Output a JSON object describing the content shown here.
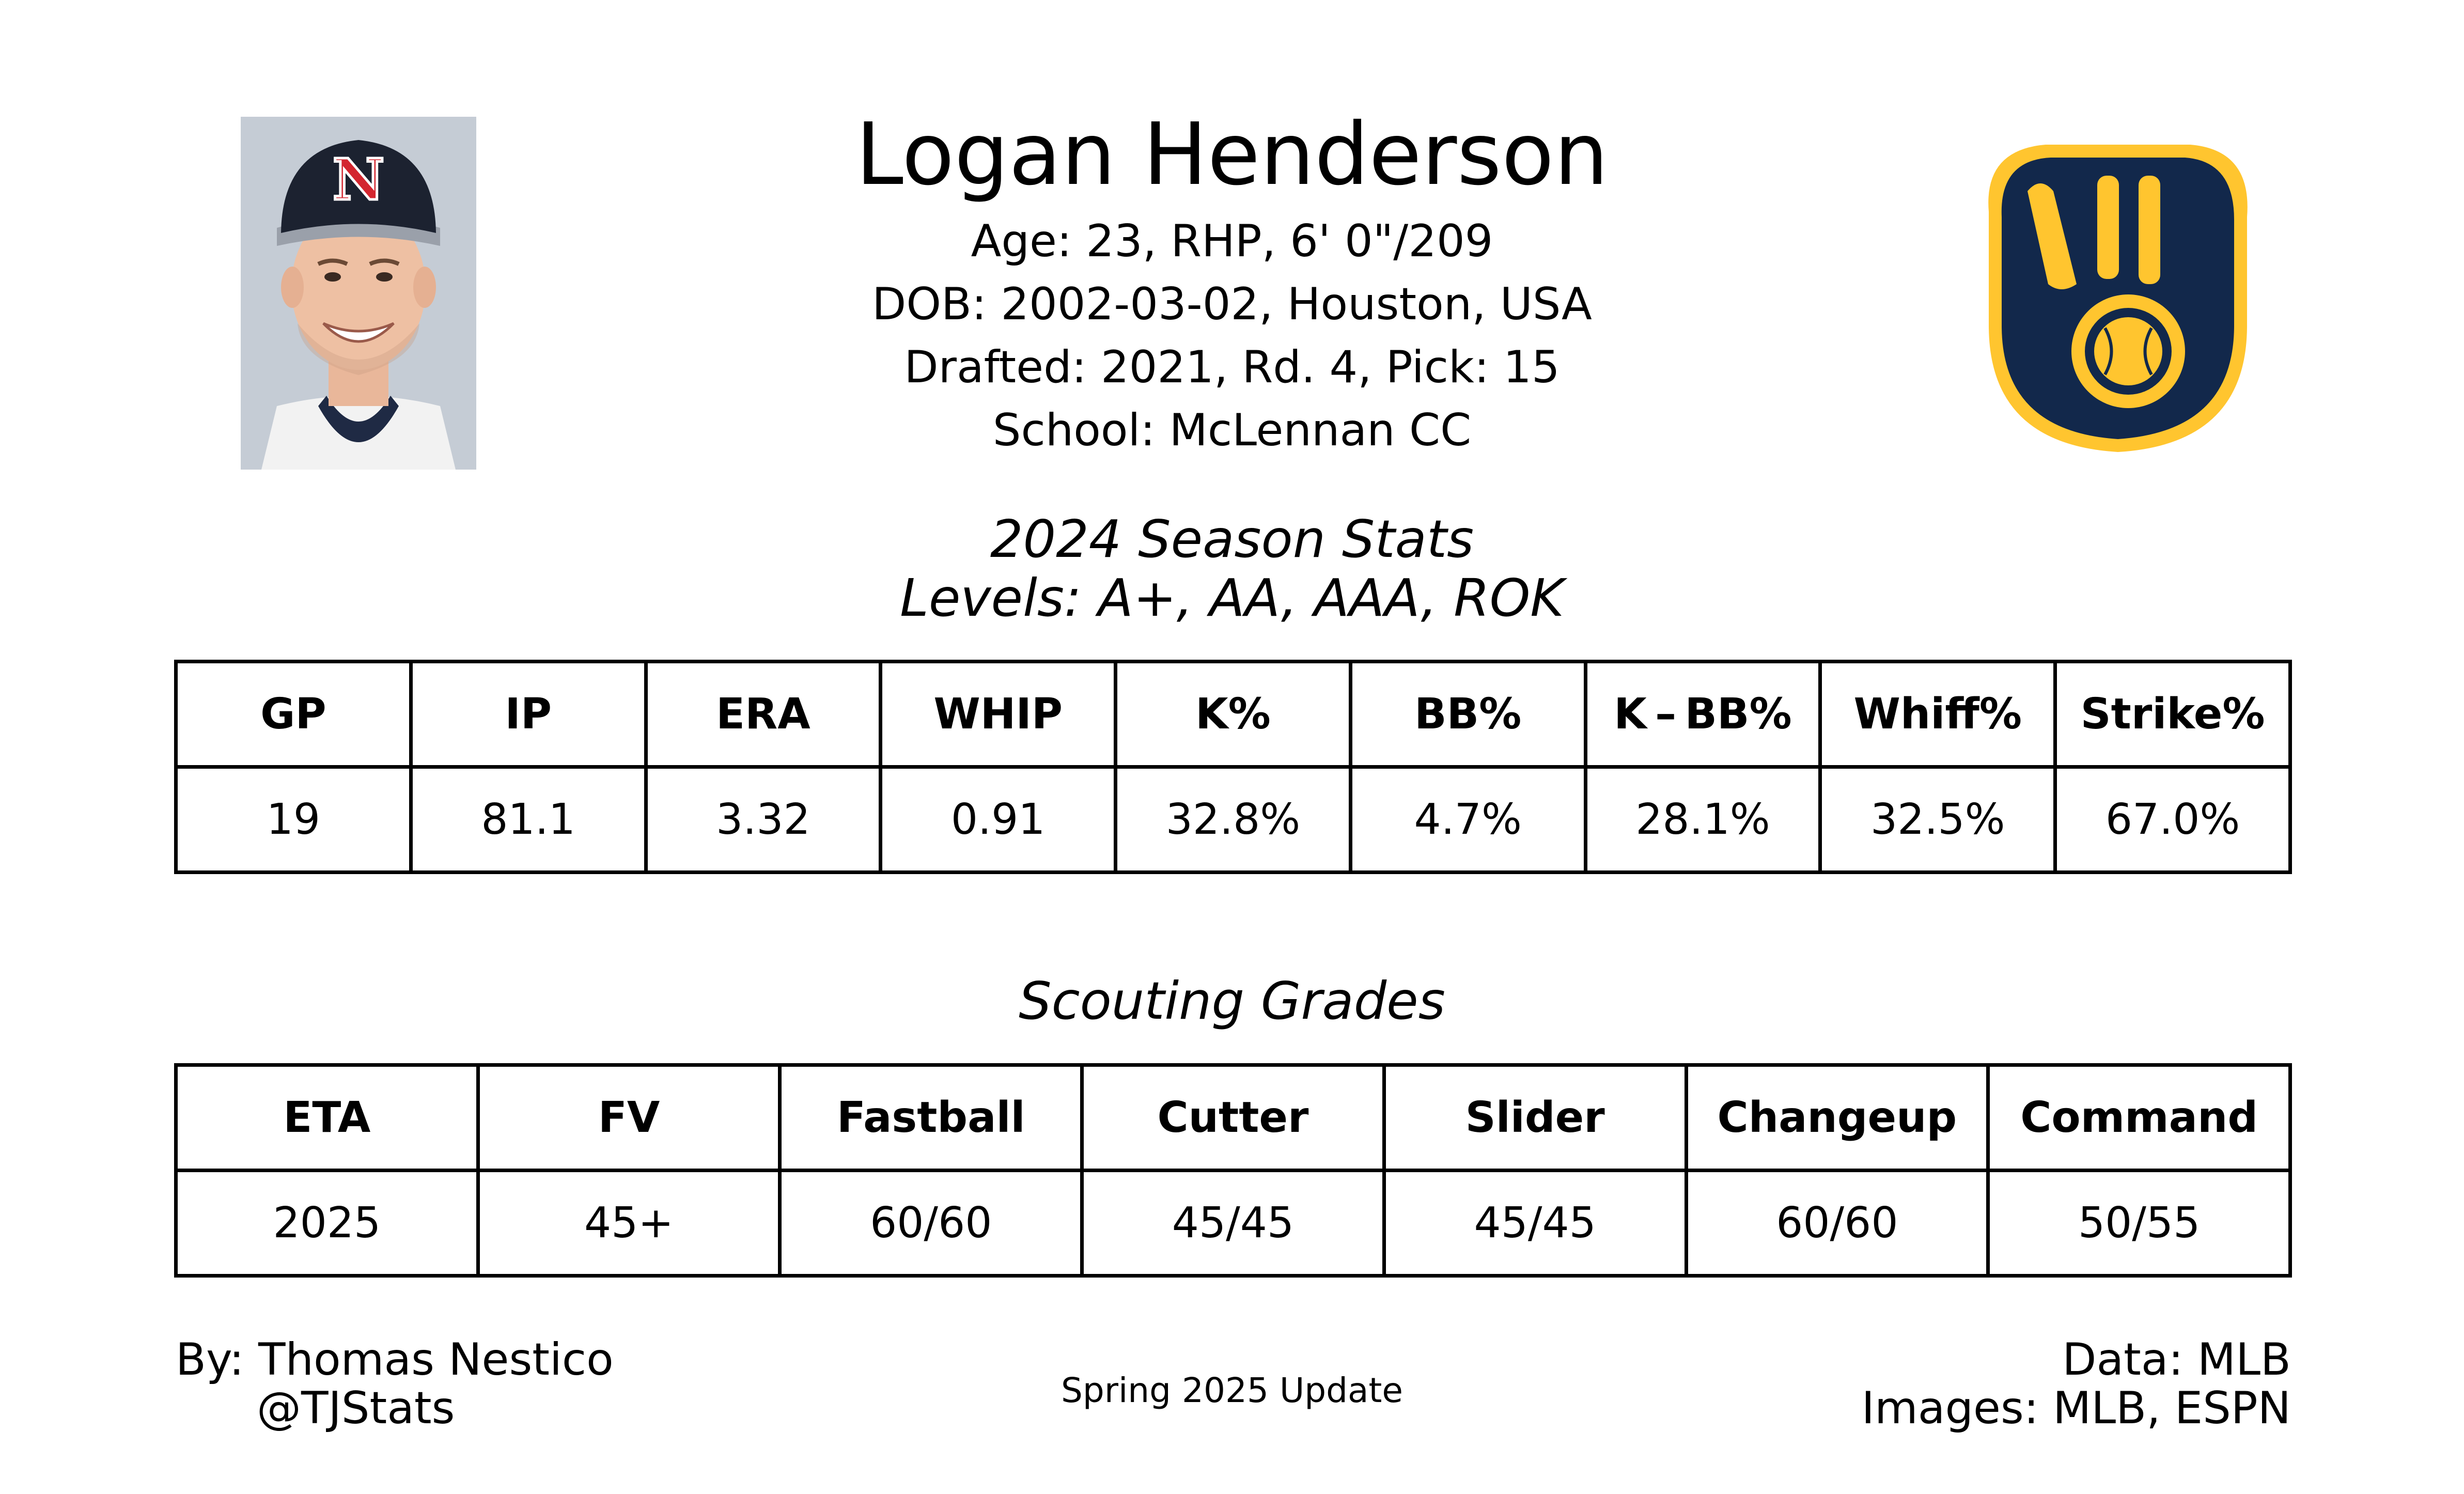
{
  "player": {
    "name": "Logan Henderson",
    "age_line": "Age: 23, RHP, 6' 0\"/209",
    "dob_line": "DOB: 2002-03-02, Houston, USA",
    "draft_line": "Drafted: 2021, Rd. 4, Pick: 15",
    "school_line": "School: McLennan CC",
    "cap_letter": "N"
  },
  "stats": {
    "title": "2024 Season Stats",
    "levels": "Levels: A+, AA, AAA, ROK",
    "headers": [
      "GP",
      "IP",
      "ERA",
      "WHIP",
      "K%",
      "BB%",
      "K – BB%",
      "Whiff%",
      "Strike%"
    ],
    "values": [
      "19",
      "81.1",
      "3.32",
      "0.91",
      "32.8%",
      "4.7%",
      "28.1%",
      "32.5%",
      "67.0%"
    ]
  },
  "grades": {
    "title": "Scouting Grades",
    "headers": [
      "ETA",
      "FV",
      "Fastball",
      "Cutter",
      "Slider",
      "Changeup",
      "Command"
    ],
    "values": [
      "2025",
      "45+",
      "60/60",
      "45/45",
      "45/45",
      "60/60",
      "50/55"
    ]
  },
  "footer": {
    "by": "By: Thomas Nestico",
    "handle": "@TJStats",
    "update": "Spring 2025 Update",
    "data_source": "Data: MLB",
    "image_source": "Images: MLB, ESPN"
  },
  "colors": {
    "logo_navy": "#12284B",
    "logo_gold": "#FFC52F",
    "photo_bg": "#c8ced6",
    "cap_dark": "#1c2230",
    "cap_letter_red": "#d3262f"
  }
}
